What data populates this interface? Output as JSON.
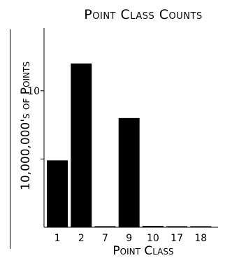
{
  "chart_data": {
    "type": "bar",
    "title": "Point Class Counts",
    "xlabel": "Point Class",
    "ylabel": "10,000,000's of Points",
    "categories": [
      "1",
      "2",
      "7",
      "9",
      "10",
      "17",
      "18"
    ],
    "values": [
      4.9,
      12.0,
      0.05,
      8.0,
      0.1,
      0.02,
      0.02
    ],
    "ylim": [
      0,
      14.6
    ],
    "yticks": [
      {
        "value": 5,
        "label": ""
      },
      {
        "value": 10,
        "label": "10"
      }
    ],
    "grid": false,
    "colors": {
      "bar": "#000000",
      "axis": "#000000",
      "background": "#ffffff"
    }
  }
}
